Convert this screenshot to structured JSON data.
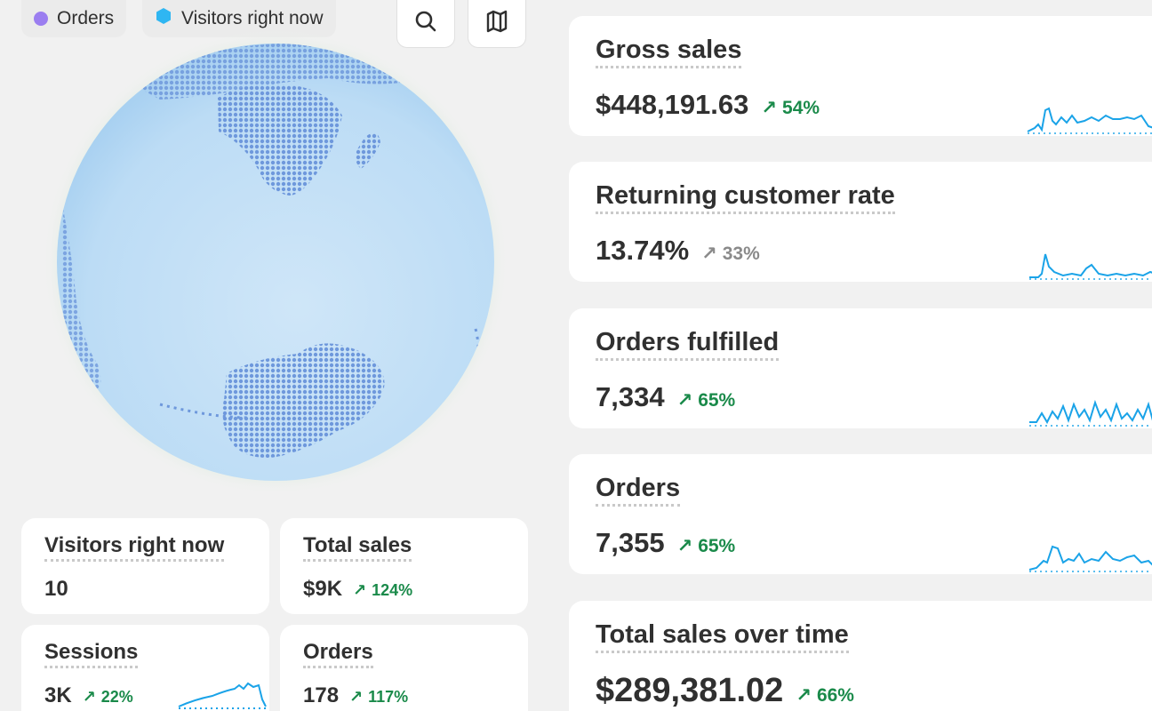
{
  "legend": {
    "orders_label": "Orders",
    "visitors_label": "Visitors right now",
    "orders_color": "#9b7ef0",
    "visitors_color": "#2fb6f2"
  },
  "toolbar": {
    "search_icon": "search-icon",
    "map_icon": "map-icon"
  },
  "colors": {
    "positive": "#1a8a4a",
    "neutral": "#8a8a8a",
    "sparkline": "#1aa3e8",
    "globe": "#c7e2f6",
    "land": "#6e98dc"
  },
  "metrics": [
    {
      "title": "Gross sales",
      "value": "$448,191.63",
      "delta": "54%",
      "trend": "positive"
    },
    {
      "title": "Returning customer rate",
      "value": "13.74%",
      "delta": "33%",
      "trend": "neutral"
    },
    {
      "title": "Orders fulfilled",
      "value": "7,334",
      "delta": "65%",
      "trend": "positive"
    },
    {
      "title": "Orders",
      "value": "7,355",
      "delta": "65%",
      "trend": "positive"
    },
    {
      "title": "Total sales over time",
      "value": "$289,381.02",
      "delta": "66%",
      "trend": "positive"
    }
  ],
  "small_cards": [
    {
      "title": "Visitors right now",
      "value": "10",
      "delta": ""
    },
    {
      "title": "Total sales",
      "value": "$9K",
      "delta": "124%"
    },
    {
      "title": "Sessions",
      "value": "3K",
      "delta": "22%"
    },
    {
      "title": "Orders",
      "value": "178",
      "delta": "117%"
    }
  ]
}
